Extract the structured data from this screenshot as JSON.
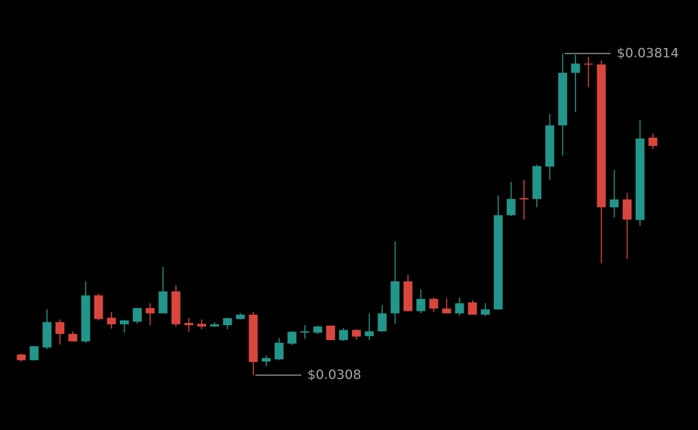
{
  "chart_data": {
    "type": "candlestick",
    "open": [
      0.03127,
      0.03114,
      0.03143,
      0.03201,
      0.03174,
      0.03157,
      0.03262,
      0.03211,
      0.03196,
      0.03202,
      0.03233,
      0.03221,
      0.03271,
      0.03199,
      0.03197,
      0.03191,
      0.03194,
      0.03208,
      0.03218,
      0.03111,
      0.03116,
      0.03152,
      0.03177,
      0.03177,
      0.03193,
      0.0316,
      0.03183,
      0.03169,
      0.0318,
      0.03221,
      0.03294,
      0.03226,
      0.03254,
      0.03232,
      0.03221,
      0.03246,
      0.03218,
      0.0323,
      0.03445,
      0.03484,
      0.03482,
      0.03556,
      0.0365,
      0.0377,
      0.03791,
      0.03789,
      0.03463,
      0.03481,
      0.03434,
      0.03622
    ],
    "high": [
      0.03129,
      0.03147,
      0.0323,
      0.03207,
      0.0318,
      0.03294,
      0.03266,
      0.03224,
      0.03205,
      0.03233,
      0.03244,
      0.03327,
      0.03285,
      0.0321,
      0.03207,
      0.03201,
      0.03211,
      0.03222,
      0.03224,
      0.03125,
      0.03165,
      0.0318,
      0.03194,
      0.03193,
      0.03193,
      0.03188,
      0.03185,
      0.03221,
      0.0324,
      0.03385,
      0.03309,
      0.03276,
      0.03257,
      0.03255,
      0.03257,
      0.03251,
      0.03244,
      0.0349,
      0.03521,
      0.03526,
      0.0356,
      0.03676,
      0.03814,
      0.03811,
      0.03806,
      0.03798,
      0.03548,
      0.03496,
      0.03662,
      0.03631
    ],
    "low": [
      0.03111,
      0.03114,
      0.03139,
      0.0315,
      0.03157,
      0.03154,
      0.03205,
      0.03186,
      0.03177,
      0.03197,
      0.03194,
      0.03221,
      0.03191,
      0.03179,
      0.03185,
      0.0319,
      0.03185,
      0.03207,
      0.0308,
      0.031,
      0.03114,
      0.03149,
      0.03163,
      0.03174,
      0.0316,
      0.03158,
      0.03161,
      0.0316,
      0.03179,
      0.03197,
      0.03226,
      0.03221,
      0.03224,
      0.03221,
      0.03216,
      0.03218,
      0.03215,
      0.03229,
      0.03443,
      0.03435,
      0.03463,
      0.03526,
      0.03581,
      0.03681,
      0.03737,
      0.03335,
      0.0344,
      0.03345,
      0.03421,
      0.03596
    ],
    "close": [
      0.03114,
      0.03146,
      0.03201,
      0.03174,
      0.03157,
      0.03262,
      0.03208,
      0.03196,
      0.03205,
      0.03233,
      0.03221,
      0.03271,
      0.03196,
      0.03194,
      0.03191,
      0.03196,
      0.0321,
      0.03218,
      0.0311,
      0.03119,
      0.03154,
      0.03179,
      0.0318,
      0.03191,
      0.0316,
      0.03183,
      0.03168,
      0.0318,
      0.03221,
      0.03294,
      0.03226,
      0.03254,
      0.03232,
      0.03221,
      0.03244,
      0.03218,
      0.0323,
      0.03445,
      0.03482,
      0.03481,
      0.03557,
      0.0365,
      0.0377,
      0.03791,
      0.03789,
      0.03463,
      0.03481,
      0.03435,
      0.0362,
      0.03603
    ],
    "up_color": "#22968a",
    "down_color": "#d9463e",
    "annotations": [
      {
        "value": 0.03814,
        "label": "$0.03814"
      },
      {
        "value": 0.0308,
        "label": "$0.0308"
      }
    ]
  }
}
